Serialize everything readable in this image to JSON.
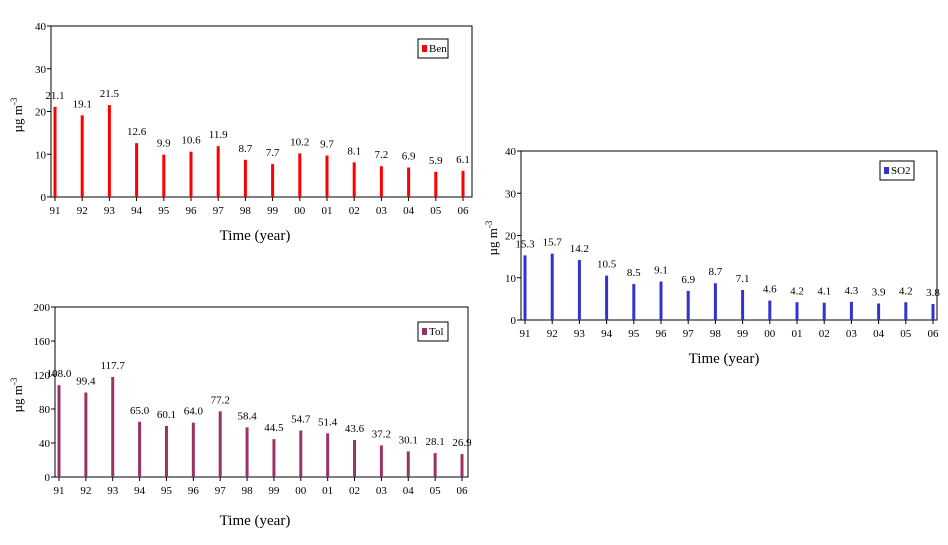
{
  "chart_data": [
    {
      "type": "bar",
      "categories": [
        "91",
        "92",
        "93",
        "94",
        "95",
        "96",
        "97",
        "98",
        "99",
        "00",
        "01",
        "02",
        "03",
        "04",
        "05",
        "06"
      ],
      "series": [
        {
          "name": "Ben",
          "color": "#ff0000",
          "values": [
            21.1,
            19.1,
            21.5,
            12.6,
            9.9,
            10.6,
            11.9,
            8.7,
            7.7,
            10.2,
            9.7,
            8.1,
            7.2,
            6.9,
            5.9,
            6.1
          ]
        }
      ],
      "data_labels": [
        "21.1",
        "19.1",
        "21.5",
        "12.6",
        "9.9",
        "10.6",
        "11.9",
        "8.7",
        "7.7",
        "10.2",
        "9.7",
        "8.1",
        "7.2",
        "6.9",
        "5.9",
        "6.1"
      ],
      "yticks": [
        "0",
        "10",
        "20",
        "30",
        "40"
      ],
      "xlabel": "Time (year)",
      "ylabel": "µg m",
      "ylabel_sup": "-3",
      "ylim": [
        0,
        40
      ],
      "legend": "top-right"
    },
    {
      "type": "bar",
      "categories": [
        "91",
        "92",
        "93",
        "94",
        "95",
        "96",
        "97",
        "98",
        "99",
        "00",
        "01",
        "02",
        "03",
        "04",
        "05",
        "06"
      ],
      "series": [
        {
          "name": "Tol",
          "color": "#993366",
          "values": [
            108.0,
            99.4,
            117.7,
            65.0,
            60.1,
            64.0,
            77.2,
            58.4,
            44.5,
            54.7,
            51.4,
            43.6,
            37.2,
            30.1,
            28.1,
            26.9
          ]
        }
      ],
      "data_labels": [
        "108.0",
        "99.4",
        "117.7",
        "65.0",
        "60.1",
        "64.0",
        "77.2",
        "58.4",
        "44.5",
        "54.7",
        "51.4",
        "43.6",
        "37.2",
        "30.1",
        "28.1",
        "26.9"
      ],
      "yticks": [
        "0",
        "40",
        "80",
        "120",
        "160",
        "200"
      ],
      "xlabel": "Time (year)",
      "ylabel": "µg m",
      "ylabel_sup": "-3",
      "ylim": [
        0,
        200
      ],
      "legend": "top-right"
    },
    {
      "type": "bar",
      "categories": [
        "91",
        "92",
        "93",
        "94",
        "95",
        "96",
        "97",
        "98",
        "99",
        "00",
        "01",
        "02",
        "03",
        "04",
        "05",
        "06"
      ],
      "series": [
        {
          "name": "SO2",
          "color": "#3333cc",
          "values": [
            15.3,
            15.7,
            14.2,
            10.5,
            8.5,
            9.1,
            6.9,
            8.7,
            7.1,
            4.6,
            4.2,
            4.1,
            4.3,
            3.9,
            4.2,
            3.8
          ]
        }
      ],
      "data_labels": [
        "15.3",
        "15.7",
        "14.2",
        "10.5",
        "8.5",
        "9.1",
        "6.9",
        "8.7",
        "7.1",
        "4.6",
        "4.2",
        "4.1",
        "4.3",
        "3.9",
        "4.2",
        "3.8"
      ],
      "yticks": [
        "0",
        "10",
        "20",
        "30",
        "40"
      ],
      "xlabel": "Time (year)",
      "ylabel": "µg m",
      "ylabel_sup": "-3",
      "ylim": [
        0,
        40
      ],
      "legend": "top-right"
    }
  ]
}
